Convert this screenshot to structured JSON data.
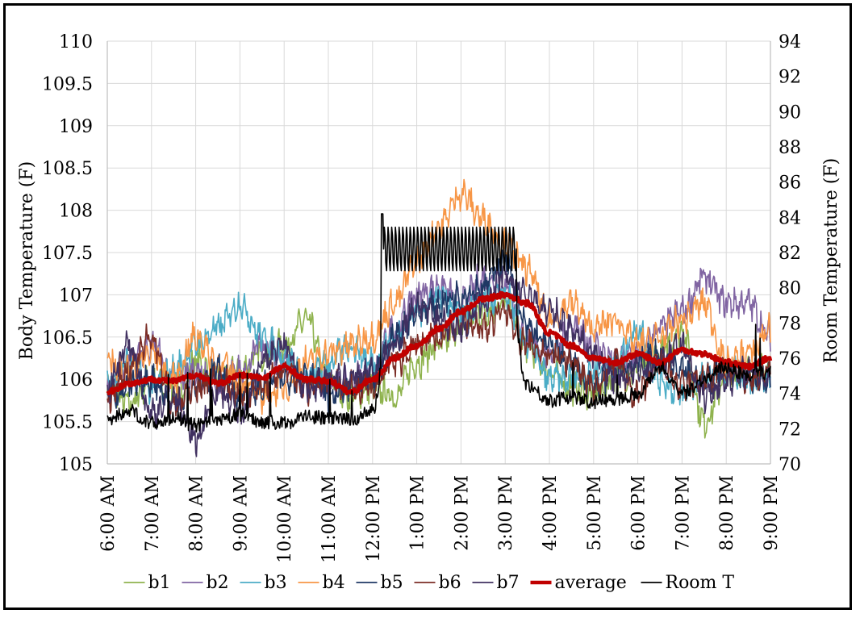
{
  "chart_data": {
    "type": "line",
    "title": "",
    "ylabel": "Body Temperature (F)",
    "y2label": "Room Temperature (F)",
    "ylim": [
      105,
      110
    ],
    "y2lim": [
      70,
      94
    ],
    "yticks": [
      105,
      105.5,
      106,
      106.5,
      107,
      107.5,
      108,
      108.5,
      109,
      109.5,
      110
    ],
    "y2ticks": [
      70,
      72,
      74,
      76,
      78,
      80,
      82,
      84,
      86,
      88,
      90,
      92,
      94
    ],
    "xlim": [
      "6:00 AM",
      "9:00 PM"
    ],
    "xticks": [
      "6:00 AM",
      "7:00 AM",
      "8:00 AM",
      "9:00 AM",
      "10:00 AM",
      "11:00 AM",
      "12:00 PM",
      "1:00 PM",
      "2:00 PM",
      "3:00 PM",
      "4:00 PM",
      "5:00 PM",
      "6:00 PM",
      "7:00 PM",
      "8:00 PM",
      "9:00 PM"
    ],
    "grid": true,
    "legend_position": "bottom",
    "x_hours": [
      6,
      6.5,
      7,
      7.5,
      8,
      8.5,
      9,
      9.5,
      10,
      10.5,
      11,
      11.5,
      12,
      12.5,
      13,
      13.5,
      14,
      14.5,
      15,
      15.5,
      16,
      16.5,
      17,
      17.5,
      18,
      18.5,
      19,
      19.5,
      20,
      20.5,
      21
    ],
    "series": [
      {
        "name": "b1",
        "color": "#8fb34e",
        "width": 1.6,
        "axis": "left",
        "values": [
          105.9,
          105.7,
          106.0,
          105.8,
          106.2,
          106.0,
          106.1,
          106.3,
          106.4,
          106.7,
          106.0,
          105.8,
          105.9,
          105.8,
          106.2,
          106.4,
          106.6,
          106.8,
          106.9,
          106.4,
          106.1,
          105.9,
          105.8,
          106.0,
          106.1,
          106.3,
          106.6,
          105.5,
          106.0,
          106.1,
          106.1
        ]
      },
      {
        "name": "b2",
        "color": "#8064a2",
        "width": 1.6,
        "axis": "left",
        "values": [
          105.9,
          106.2,
          106.4,
          106.0,
          106.1,
          105.9,
          106.1,
          106.4,
          106.2,
          106.0,
          105.9,
          106.0,
          106.1,
          106.6,
          107.0,
          107.1,
          106.9,
          107.2,
          107.1,
          106.5,
          106.3,
          106.6,
          106.4,
          106.2,
          106.3,
          106.6,
          106.8,
          107.2,
          106.9,
          106.9,
          106.5
        ]
      },
      {
        "name": "b3",
        "color": "#4bacc6",
        "width": 1.6,
        "axis": "left",
        "values": [
          106.0,
          106.2,
          105.9,
          106.1,
          106.4,
          106.6,
          106.9,
          106.5,
          106.3,
          106.0,
          106.2,
          106.4,
          106.2,
          106.5,
          106.8,
          107.0,
          106.8,
          106.9,
          107.0,
          106.4,
          106.0,
          106.0,
          106.1,
          106.2,
          106.6,
          106.0,
          105.8,
          106.0,
          106.1,
          106.0,
          106.0
        ]
      },
      {
        "name": "b4",
        "color": "#f79646",
        "width": 1.6,
        "axis": "left",
        "values": [
          106.2,
          106.1,
          106.3,
          106.0,
          106.5,
          106.2,
          106.0,
          105.8,
          105.9,
          106.2,
          106.3,
          106.4,
          106.5,
          106.9,
          107.4,
          107.8,
          108.2,
          107.9,
          107.6,
          107.3,
          106.7,
          106.9,
          106.6,
          106.7,
          106.4,
          106.5,
          106.7,
          106.9,
          106.2,
          106.3,
          106.6
        ]
      },
      {
        "name": "b5",
        "color": "#1f3864",
        "width": 1.6,
        "axis": "left",
        "values": [
          105.8,
          105.9,
          106.0,
          105.7,
          105.9,
          106.1,
          105.8,
          105.9,
          106.0,
          106.1,
          105.8,
          105.9,
          106.0,
          106.5,
          106.8,
          106.9,
          107.0,
          107.1,
          107.4,
          106.6,
          106.4,
          106.2,
          105.9,
          106.1,
          106.2,
          106.3,
          106.1,
          106.0,
          106.1,
          106.0,
          106.0
        ]
      },
      {
        "name": "b6",
        "color": "#7b2d26",
        "width": 1.6,
        "axis": "left",
        "values": [
          105.8,
          106.1,
          106.5,
          105.7,
          105.9,
          106.0,
          105.8,
          105.9,
          106.1,
          105.9,
          106.0,
          105.9,
          105.9,
          106.2,
          106.4,
          106.5,
          106.7,
          106.6,
          106.8,
          106.4,
          106.3,
          106.2,
          105.9,
          106.2,
          105.8,
          106.2,
          105.9,
          106.0,
          106.1,
          106.0,
          106.1
        ]
      },
      {
        "name": "b7",
        "color": "#403060",
        "width": 1.6,
        "axis": "left",
        "values": [
          105.9,
          106.4,
          105.6,
          105.8,
          105.3,
          105.9,
          105.6,
          106.2,
          106.4,
          105.9,
          106.0,
          106.0,
          106.1,
          106.4,
          106.9,
          106.7,
          106.6,
          106.9,
          107.2,
          107.0,
          106.8,
          106.6,
          106.3,
          106.0,
          106.1,
          106.2,
          106.4,
          105.8,
          106.0,
          106.1,
          106.0
        ]
      },
      {
        "name": "average",
        "color": "#c00000",
        "width": 4.5,
        "axis": "left",
        "values": [
          105.85,
          105.95,
          106.0,
          105.98,
          106.05,
          105.95,
          106.05,
          106.02,
          106.15,
          106.0,
          105.98,
          105.85,
          106.0,
          106.25,
          106.4,
          106.6,
          106.8,
          106.95,
          107.0,
          106.9,
          106.55,
          106.4,
          106.25,
          106.2,
          106.3,
          106.2,
          106.35,
          106.3,
          106.2,
          106.15,
          106.25
        ]
      },
      {
        "name": "Room T",
        "color": "#000000",
        "width": 1.6,
        "axis": "right",
        "values": [
          72.5,
          73.0,
          72.3,
          72.6,
          72.2,
          72.4,
          72.8,
          72.4,
          72.3,
          72.7,
          72.6,
          72.5,
          73.0,
          82.0,
          82.1,
          82.0,
          82.2,
          82.0,
          82.3,
          74.5,
          73.6,
          73.8,
          73.5,
          73.7,
          74.0,
          75.5,
          74.0,
          74.8,
          75.5,
          75.0,
          75.2
        ]
      }
    ]
  }
}
